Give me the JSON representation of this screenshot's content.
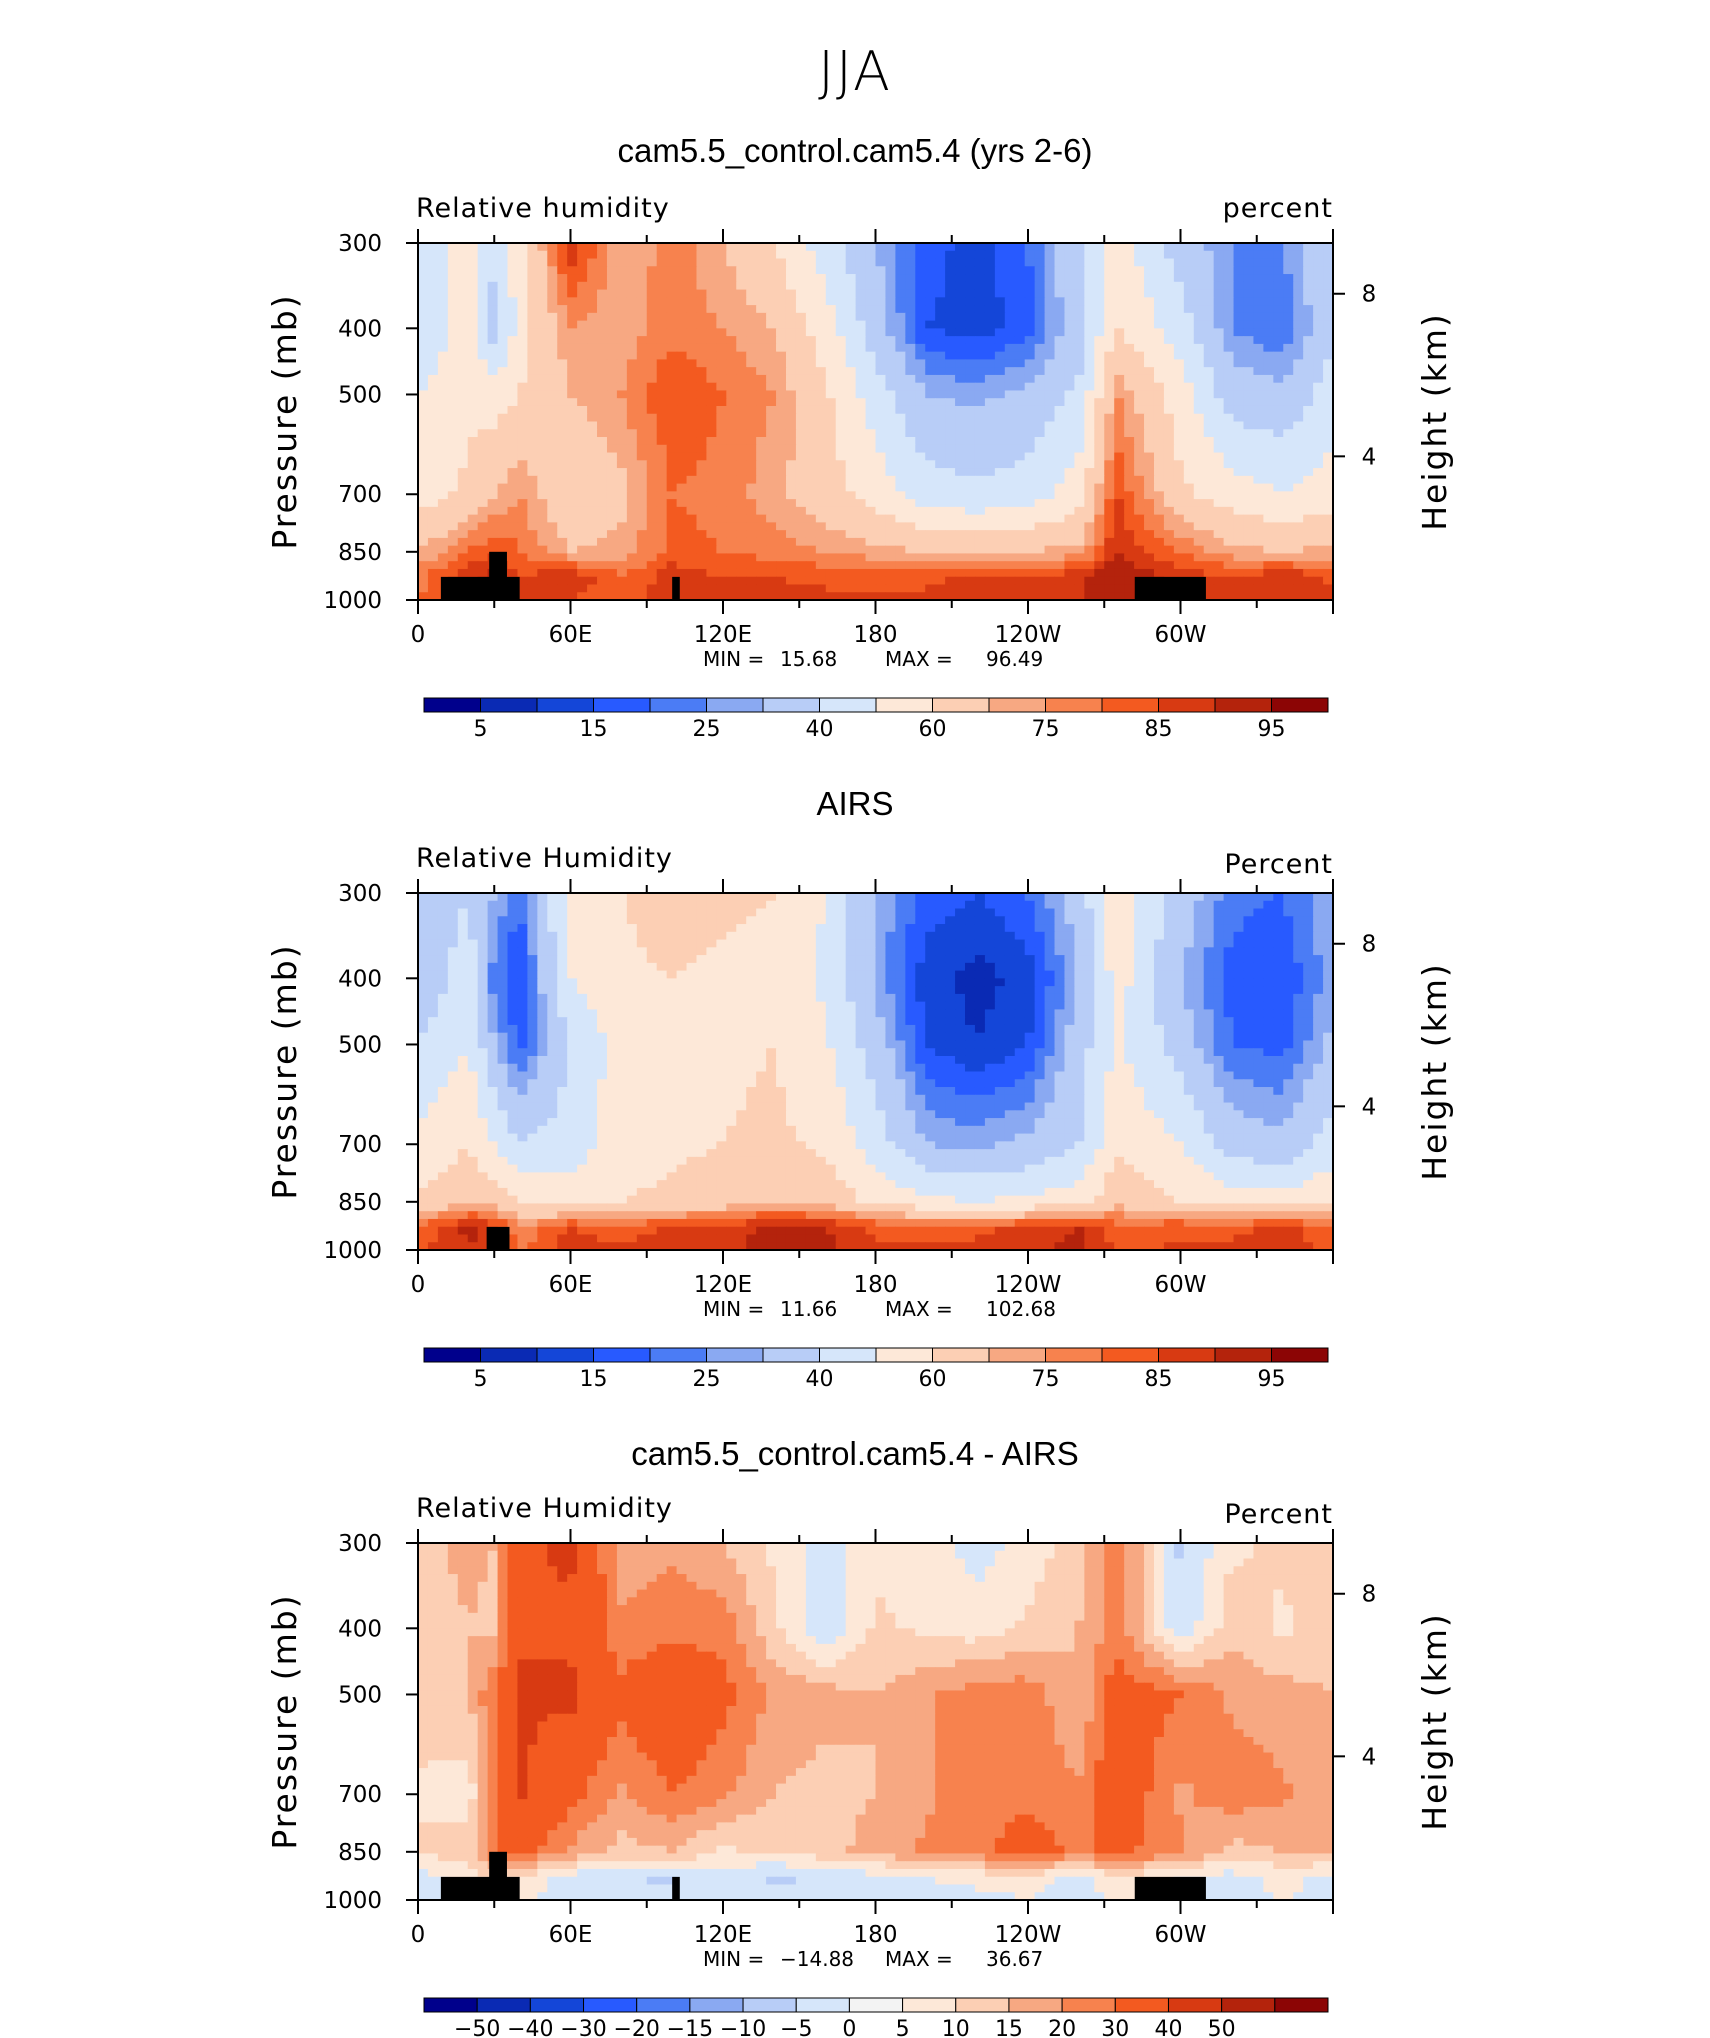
{
  "page": {
    "title": "JJA"
  },
  "colors": {
    "rh_scale": [
      "#00008c",
      "#0a2ab4",
      "#1446d8",
      "#285aff",
      "#4b7cf5",
      "#8aa9f2",
      "#b8cdf7",
      "#d6e6fa",
      "#fde8d8",
      "#fccfb4",
      "#f7a882",
      "#f7824e",
      "#f35a20",
      "#d83a12",
      "#b4230c",
      "#8c0505"
    ],
    "diff_scale": [
      "#00008c",
      "#0a2ab4",
      "#1446d8",
      "#285aff",
      "#4b7cf5",
      "#8aa9f2",
      "#b8cdf7",
      "#d6e6fa",
      "#f3f3f3",
      "#fde8d8",
      "#fccfb4",
      "#f7a882",
      "#f7824e",
      "#f35a20",
      "#d83a12",
      "#b4230c",
      "#8c0505"
    ],
    "topography": "#000000"
  },
  "chart_data": [
    {
      "type": "heatmap",
      "title": "cam5.5_control.cam5.4 (yrs 2-6)",
      "left_label": "Relative humidity",
      "right_label": "percent",
      "ylabel": "Pressure (mb)",
      "ylabel_right": "Height (km)",
      "x_ticks": [
        "0",
        "60E",
        "120E",
        "180",
        "120W",
        "60W"
      ],
      "x_tick_lons": [
        0,
        60,
        120,
        180,
        240,
        300
      ],
      "xlim": [
        0,
        360
      ],
      "y_ticks": [
        "300",
        "400",
        "500",
        "700",
        "850",
        "1000"
      ],
      "y_tick_values": [
        300,
        400,
        500,
        700,
        850,
        1000
      ],
      "ylim": [
        1000,
        300
      ],
      "y_scale": "log",
      "height_ticks": [
        "8",
        "4"
      ],
      "min_label": "MIN =",
      "min_value": "15.68",
      "max_label": "MAX =",
      "max_value": "96.49",
      "colorbar_labels": [
        "5",
        "15",
        "25",
        "40",
        "60",
        "75",
        "85",
        "95"
      ],
      "colorbar_levels": [
        5,
        10,
        15,
        20,
        25,
        30,
        40,
        50,
        60,
        70,
        75,
        80,
        85,
        90,
        95
      ],
      "approx_field": {
        "description_levels": [
          300,
          400,
          500,
          700,
          850,
          925,
          1000
        ],
        "lon": [
          0,
          20,
          30,
          40,
          60,
          80,
          100,
          120,
          140,
          160,
          180,
          200,
          220,
          240,
          260,
          275,
          300,
          320,
          340,
          360
        ],
        "rows": [
          [
            45,
            55,
            42,
            55,
            90,
            70,
            78,
            70,
            60,
            45,
            30,
            18,
            12,
            20,
            40,
            55,
            35,
            25,
            25,
            40
          ],
          [
            40,
            55,
            35,
            55,
            75,
            72,
            78,
            75,
            70,
            55,
            35,
            15,
            12,
            18,
            35,
            60,
            45,
            25,
            20,
            38
          ],
          [
            50,
            58,
            55,
            60,
            70,
            75,
            85,
            80,
            75,
            62,
            45,
            30,
            28,
            32,
            42,
            75,
            55,
            35,
            32,
            45
          ],
          [
            55,
            62,
            70,
            75,
            62,
            68,
            80,
            78,
            72,
            65,
            55,
            45,
            42,
            45,
            55,
            85,
            62,
            55,
            50,
            55
          ],
          [
            70,
            80,
            85,
            80,
            70,
            72,
            82,
            80,
            78,
            75,
            72,
            70,
            68,
            70,
            72,
            90,
            80,
            72,
            70,
            72
          ],
          [
            78,
            90,
            92,
            85,
            90,
            80,
            88,
            85,
            85,
            84,
            84,
            84,
            86,
            86,
            88,
            95,
            88,
            85,
            90,
            84
          ],
          [
            80,
            88,
            90,
            85,
            85,
            82,
            88,
            86,
            86,
            86,
            86,
            86,
            88,
            88,
            90,
            92,
            88,
            86,
            88,
            86
          ]
        ]
      },
      "topography": [
        {
          "lon_start": 9,
          "lon_end": 40,
          "p_top": 925
        },
        {
          "lon_start": 28,
          "lon_end": 35,
          "p_top": 850
        },
        {
          "lon_start": 100,
          "lon_end": 103,
          "p_top": 925
        },
        {
          "lon_start": 282,
          "lon_end": 310,
          "p_top": 925
        }
      ]
    },
    {
      "type": "heatmap",
      "title": "AIRS",
      "left_label": "Relative Humidity",
      "right_label": "Percent",
      "ylabel": "Pressure (mb)",
      "ylabel_right": "Height (km)",
      "x_ticks": [
        "0",
        "60E",
        "120E",
        "180",
        "120W",
        "60W"
      ],
      "x_tick_lons": [
        0,
        60,
        120,
        180,
        240,
        300
      ],
      "xlim": [
        0,
        360
      ],
      "y_ticks": [
        "300",
        "400",
        "500",
        "700",
        "850",
        "1000"
      ],
      "y_tick_values": [
        300,
        400,
        500,
        700,
        850,
        1000
      ],
      "ylim": [
        1000,
        300
      ],
      "y_scale": "log",
      "height_ticks": [
        "8",
        "4"
      ],
      "min_label": "MIN =",
      "min_value": "11.66",
      "max_label": "MAX =",
      "max_value": "102.68",
      "colorbar_labels": [
        "5",
        "15",
        "25",
        "40",
        "60",
        "75",
        "85",
        "95"
      ],
      "colorbar_levels": [
        5,
        10,
        15,
        20,
        25,
        30,
        40,
        50,
        60,
        70,
        75,
        80,
        85,
        90,
        95
      ],
      "approx_field": {
        "description_levels": [
          300,
          400,
          500,
          700,
          850,
          925,
          1000
        ],
        "lon": [
          0,
          20,
          30,
          40,
          60,
          80,
          100,
          120,
          140,
          160,
          180,
          200,
          220,
          240,
          260,
          275,
          300,
          320,
          340,
          360
        ],
        "rows": [
          [
            35,
            40,
            30,
            20,
            55,
            60,
            65,
            62,
            60,
            50,
            30,
            18,
            15,
            20,
            35,
            55,
            35,
            22,
            20,
            30
          ],
          [
            32,
            45,
            22,
            15,
            50,
            58,
            60,
            58,
            58,
            48,
            28,
            12,
            8,
            12,
            30,
            55,
            30,
            18,
            15,
            28
          ],
          [
            40,
            50,
            30,
            18,
            40,
            55,
            58,
            58,
            60,
            52,
            35,
            15,
            10,
            15,
            35,
            52,
            35,
            20,
            18,
            32
          ],
          [
            52,
            60,
            50,
            40,
            45,
            55,
            58,
            60,
            62,
            58,
            45,
            30,
            28,
            32,
            40,
            58,
            50,
            35,
            32,
            45
          ],
          [
            62,
            68,
            65,
            60,
            55,
            60,
            62,
            65,
            70,
            66,
            58,
            52,
            50,
            52,
            55,
            68,
            60,
            55,
            55,
            58
          ],
          [
            80,
            92,
            88,
            75,
            85,
            82,
            86,
            86,
            92,
            90,
            84,
            84,
            84,
            86,
            90,
            82,
            84,
            84,
            86,
            82
          ],
          [
            84,
            90,
            88,
            80,
            88,
            86,
            88,
            88,
            94,
            92,
            86,
            86,
            86,
            88,
            92,
            84,
            86,
            86,
            88,
            84
          ]
        ]
      },
      "topography": [
        {
          "lon_start": 27,
          "lon_end": 36,
          "p_top": 925
        }
      ]
    },
    {
      "type": "heatmap",
      "title": "cam5.5_control.cam5.4 - AIRS",
      "left_label": "Relative Humidity",
      "right_label": "Percent",
      "ylabel": "Pressure (mb)",
      "ylabel_right": "Height (km)",
      "x_ticks": [
        "0",
        "60E",
        "120E",
        "180",
        "120W",
        "60W"
      ],
      "x_tick_lons": [
        0,
        60,
        120,
        180,
        240,
        300
      ],
      "xlim": [
        0,
        360
      ],
      "y_ticks": [
        "300",
        "400",
        "500",
        "700",
        "850",
        "1000"
      ],
      "y_tick_values": [
        300,
        400,
        500,
        700,
        850,
        1000
      ],
      "ylim": [
        1000,
        300
      ],
      "y_scale": "log",
      "height_ticks": [
        "8",
        "4"
      ],
      "min_label": "MIN =",
      "min_value": "−14.88",
      "max_label": "MAX =",
      "max_value": "36.67",
      "colorbar_labels": [
        "−50",
        "−40",
        "−30",
        "−20",
        "−15",
        "−10",
        "−5",
        "0",
        "5",
        "10",
        "15",
        "20",
        "30",
        "40",
        "50"
      ],
      "colorbar_levels": [
        -50,
        -40,
        -30,
        -20,
        -15,
        -10,
        -5,
        0,
        5,
        10,
        15,
        20,
        30,
        40,
        50
      ],
      "approx_field": {
        "description_levels": [
          300,
          400,
          500,
          700,
          850,
          925,
          1000
        ],
        "lon": [
          0,
          20,
          30,
          40,
          60,
          80,
          100,
          120,
          140,
          160,
          180,
          200,
          220,
          240,
          260,
          275,
          300,
          320,
          340,
          360
        ],
        "rows": [
          [
            8,
            12,
            10,
            28,
            32,
            12,
            14,
            10,
            4,
            -2,
            4,
            2,
            -2,
            2,
            8,
            20,
            -6,
            4,
            6,
            8
          ],
          [
            6,
            10,
            8,
            30,
            28,
            16,
            18,
            18,
            6,
            -4,
            6,
            4,
            2,
            6,
            10,
            18,
            -4,
            8,
            4,
            8
          ],
          [
            8,
            10,
            20,
            30,
            32,
            22,
            28,
            22,
            14,
            12,
            10,
            14,
            18,
            18,
            10,
            24,
            20,
            14,
            12,
            10
          ],
          [
            4,
            2,
            18,
            32,
            22,
            14,
            20,
            16,
            10,
            8,
            10,
            14,
            18,
            18,
            16,
            26,
            14,
            18,
            16,
            10
          ],
          [
            6,
            8,
            20,
            22,
            14,
            8,
            10,
            4,
            6,
            8,
            12,
            16,
            18,
            24,
            18,
            22,
            16,
            8,
            10,
            12
          ],
          [
            -2,
            2,
            6,
            4,
            -2,
            -4,
            -6,
            -2,
            -6,
            -4,
            -2,
            0,
            2,
            4,
            -2,
            4,
            0,
            -2,
            2,
            -2
          ],
          [
            -4,
            -2,
            2,
            2,
            -4,
            -4,
            -4,
            -2,
            -4,
            -4,
            -2,
            -2,
            -2,
            0,
            -4,
            2,
            -2,
            -2,
            0,
            -2
          ]
        ]
      },
      "topography": [
        {
          "lon_start": 9,
          "lon_end": 40,
          "p_top": 925
        },
        {
          "lon_start": 28,
          "lon_end": 35,
          "p_top": 850
        },
        {
          "lon_start": 100,
          "lon_end": 103,
          "p_top": 925
        },
        {
          "lon_start": 282,
          "lon_end": 310,
          "p_top": 925
        }
      ]
    }
  ]
}
